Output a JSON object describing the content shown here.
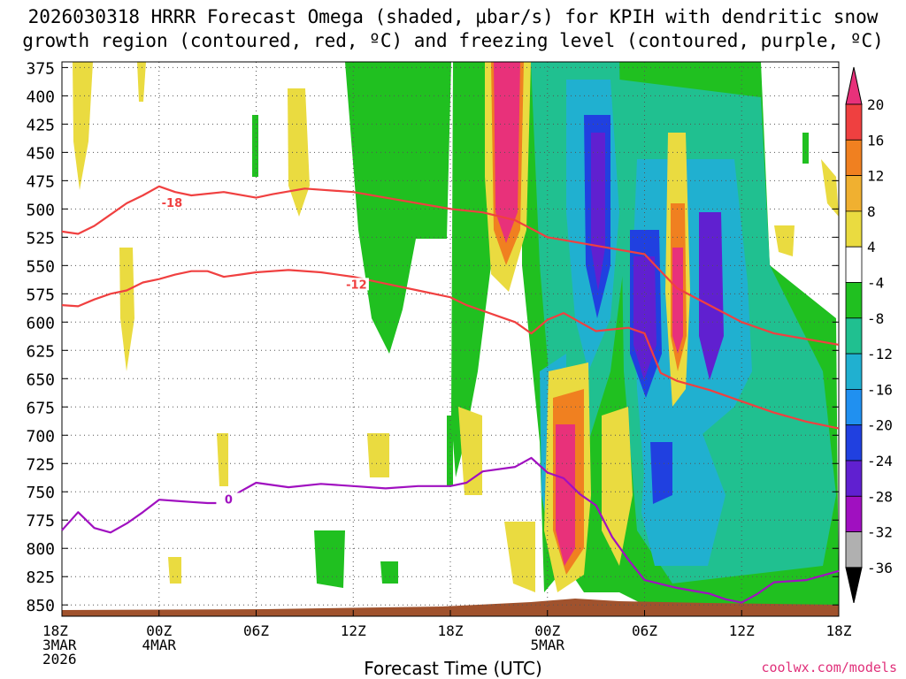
{
  "title": {
    "line1": "2026030318 HRRR Forecast Omega (shaded, μbar/s) for KPIH with dendritic snow",
    "line2": "growth region (contoured, red, ºC) and freezing level (contoured, purple, ºC)"
  },
  "xlabel": "Forecast Time (UTC)",
  "credit": "coolwx.com/models",
  "chart_data": {
    "type": "heatmap",
    "x_hours": [
      0,
      48
    ],
    "y_levels_hPa": [
      375,
      400,
      425,
      450,
      475,
      500,
      525,
      550,
      575,
      600,
      625,
      650,
      675,
      700,
      725,
      750,
      775,
      800,
      825,
      850
    ],
    "ylim_hPa": [
      370,
      860
    ],
    "x_ticks": [
      {
        "hour": 0,
        "lines": [
          "18Z",
          "3MAR",
          "2026"
        ]
      },
      {
        "hour": 6,
        "lines": [
          "00Z",
          "4MAR"
        ]
      },
      {
        "hour": 12,
        "lines": [
          "06Z"
        ]
      },
      {
        "hour": 18,
        "lines": [
          "12Z"
        ]
      },
      {
        "hour": 24,
        "lines": [
          "18Z"
        ]
      },
      {
        "hour": 30,
        "lines": [
          "00Z",
          "5MAR"
        ]
      },
      {
        "hour": 36,
        "lines": [
          "06Z"
        ]
      },
      {
        "hour": 42,
        "lines": [
          "12Z"
        ]
      },
      {
        "hour": 48,
        "lines": [
          "18Z"
        ]
      }
    ],
    "colorbar": {
      "labels": [
        "20",
        "16",
        "12",
        "8",
        "4",
        "-4",
        "-8",
        "-12",
        "-16",
        "-20",
        "-24",
        "-28",
        "-32",
        "-36"
      ],
      "colors": [
        "#e8317a",
        "#ef4040",
        "#f08020",
        "#f0b030",
        "#eadb40",
        "#ffffff",
        "#20c020",
        "#20c090",
        "#20b0d0",
        "#2090f0",
        "#2040e0",
        "#6020d0",
        "#a010c0",
        "#b0b0b0",
        "#000000"
      ]
    },
    "contours": [
      {
        "name": "minus18",
        "label": "-18",
        "color": "#f04040",
        "label_at": [
          6.8,
          496
        ],
        "points": [
          [
            0,
            520
          ],
          [
            1,
            522
          ],
          [
            2,
            515
          ],
          [
            3,
            505
          ],
          [
            4,
            495
          ],
          [
            5,
            488
          ],
          [
            6,
            480
          ],
          [
            7,
            485
          ],
          [
            8,
            488
          ],
          [
            10,
            485
          ],
          [
            12,
            490
          ],
          [
            13,
            487
          ],
          [
            15,
            482
          ],
          [
            18,
            485
          ],
          [
            20,
            490
          ],
          [
            22,
            495
          ],
          [
            24,
            500
          ],
          [
            26,
            503
          ],
          [
            28,
            510
          ],
          [
            30,
            525
          ],
          [
            32,
            530
          ],
          [
            34,
            535
          ],
          [
            36,
            540
          ],
          [
            37,
            555
          ],
          [
            38,
            570
          ],
          [
            40,
            585
          ],
          [
            42,
            600
          ],
          [
            44,
            610
          ],
          [
            46,
            615
          ],
          [
            48,
            620
          ]
        ]
      },
      {
        "name": "minus12",
        "label": "-12",
        "color": "#f04040",
        "label_at": [
          18.2,
          568
        ],
        "points": [
          [
            0,
            585
          ],
          [
            1,
            586
          ],
          [
            2,
            580
          ],
          [
            3,
            575
          ],
          [
            4,
            572
          ],
          [
            5,
            565
          ],
          [
            6,
            562
          ],
          [
            7,
            558
          ],
          [
            8,
            555
          ],
          [
            9,
            555
          ],
          [
            10,
            560
          ],
          [
            11,
            558
          ],
          [
            12,
            556
          ],
          [
            14,
            554
          ],
          [
            16,
            556
          ],
          [
            18,
            560
          ],
          [
            20,
            566
          ],
          [
            22,
            572
          ],
          [
            24,
            578
          ],
          [
            25,
            585
          ],
          [
            26,
            590
          ],
          [
            27,
            595
          ],
          [
            28,
            600
          ],
          [
            29,
            610
          ],
          [
            30,
            598
          ],
          [
            31,
            592
          ],
          [
            32,
            600
          ],
          [
            33,
            608
          ],
          [
            35,
            605
          ],
          [
            36,
            610
          ],
          [
            37,
            645
          ],
          [
            38,
            652
          ],
          [
            40,
            660
          ],
          [
            42,
            670
          ],
          [
            44,
            680
          ],
          [
            46,
            688
          ],
          [
            48,
            694
          ]
        ]
      },
      {
        "name": "zero",
        "label": "0",
        "color": "#a010c0",
        "label_at": [
          10.3,
          758
        ],
        "points": [
          [
            0,
            784
          ],
          [
            1,
            768
          ],
          [
            2,
            782
          ],
          [
            3,
            786
          ],
          [
            4,
            778
          ],
          [
            5,
            768
          ],
          [
            6,
            757
          ],
          [
            7,
            758
          ],
          [
            8,
            759
          ],
          [
            9,
            760
          ],
          [
            10,
            760
          ],
          [
            11,
            750
          ],
          [
            12,
            742
          ],
          [
            14,
            746
          ],
          [
            16,
            743
          ],
          [
            18,
            745
          ],
          [
            20,
            747
          ],
          [
            22,
            745
          ],
          [
            24,
            745
          ],
          [
            25,
            742
          ],
          [
            26,
            732
          ],
          [
            28,
            728
          ],
          [
            29,
            720
          ],
          [
            30,
            733
          ],
          [
            31,
            738
          ],
          [
            32,
            752
          ],
          [
            33,
            762
          ],
          [
            34,
            790
          ],
          [
            35,
            810
          ],
          [
            36,
            828
          ],
          [
            38,
            835
          ],
          [
            40,
            840
          ],
          [
            41,
            845
          ],
          [
            42,
            848
          ],
          [
            43,
            840
          ],
          [
            44,
            830
          ],
          [
            46,
            828
          ],
          [
            48,
            820
          ]
        ]
      }
    ]
  }
}
